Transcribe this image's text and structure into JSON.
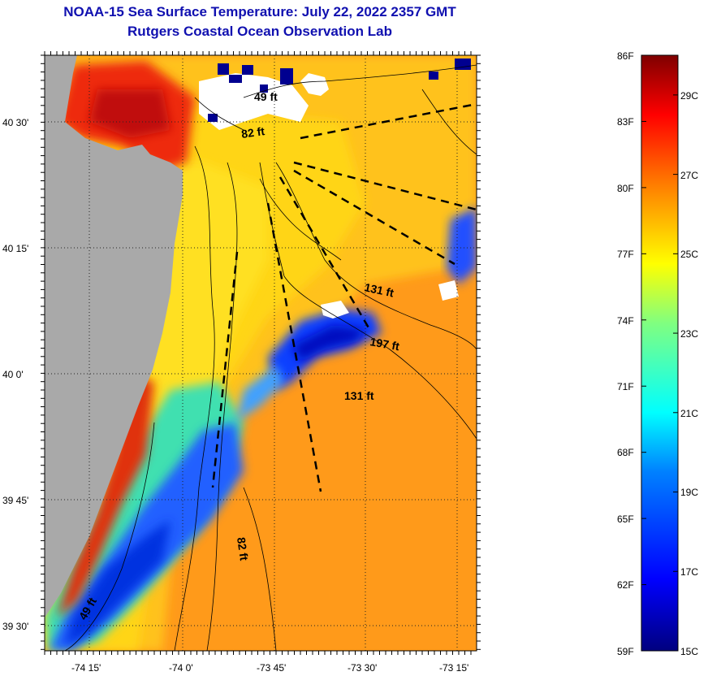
{
  "header": {
    "title": "NOAA-15 Sea Surface Temperature:  July 22, 2022 2357 GMT",
    "subtitle": "Rutgers Coastal Ocean Observation Lab"
  },
  "axes": {
    "lat_labels": [
      "40 30'",
      "40 15'",
      "40 0'",
      "39 45'",
      "39 30'"
    ],
    "lon_labels": [
      "-74 15'",
      "-74 0'",
      "-73 45'",
      "-73 30'",
      "-73 15'"
    ]
  },
  "depth_labels": [
    "49 ft",
    "82 ft",
    "131 ft",
    "197 ft",
    "131 ft",
    "82 ft",
    "49 ft"
  ],
  "colorbar": {
    "fahrenheit": [
      "86F",
      "83F",
      "80F",
      "77F",
      "74F",
      "71F",
      "68F",
      "65F",
      "62F",
      "59F"
    ],
    "celsius": [
      "29C",
      "27C",
      "25C",
      "23C",
      "21C",
      "19C",
      "17C",
      "15C"
    ],
    "range_f": [
      59,
      86
    ],
    "range_c": [
      15,
      30
    ]
  },
  "colors": {
    "title": "#1010b0",
    "land": "#a9a9a9",
    "cloud": "#ffffff"
  }
}
